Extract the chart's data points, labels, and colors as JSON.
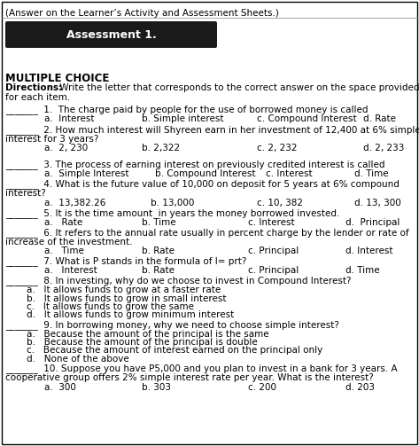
{
  "header": "(Answer on the Learner’s Activity and Assessment Sheets.)",
  "title": "Assessment 1.",
  "title_bg": "#1a1a1a",
  "title_color": "#ffffff",
  "section": "MULTIPLE CHOICE",
  "bg_color": "#ffffff",
  "border_color": "#000000",
  "text_color": "#000000",
  "fig_width": 4.73,
  "fig_height": 5.03,
  "dpi": 100
}
